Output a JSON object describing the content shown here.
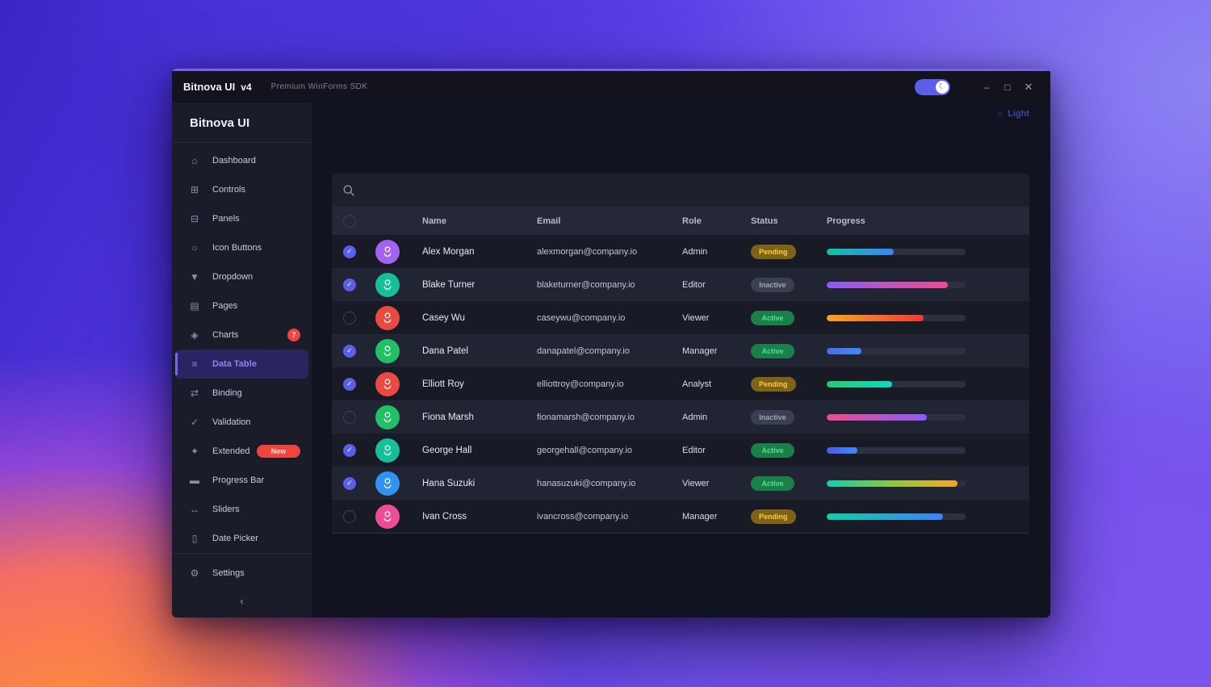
{
  "window": {
    "title": "Bitnova UI",
    "version": "v4",
    "subtitle": "Premium WinForms SDK",
    "controls": {
      "minimize": "–",
      "maximize": "□",
      "close": "✕"
    },
    "theme_toggle_on": true
  },
  "icon_glyphs": {
    "home": "⌂",
    "grid": "⊞",
    "panel": "⊟",
    "circle": "○",
    "triangle-down": "▼",
    "page": "▤",
    "diamond": "◈",
    "list": "≡",
    "arrows": "⇄",
    "check": "✓",
    "sparkle": "✦",
    "bar": "▬",
    "slider": "↔",
    "calendar": "▯",
    "gear": "⚙",
    "sun": "☼",
    "moon": "☾",
    "checkmark": "✓"
  },
  "sidebar": {
    "brand": "Bitnova UI",
    "items": [
      {
        "label": "Dashboard",
        "icon": "home"
      },
      {
        "label": "Controls",
        "icon": "grid"
      },
      {
        "label": "Panels",
        "icon": "panel"
      },
      {
        "label": "Icon Buttons",
        "icon": "circle"
      },
      {
        "label": "Dropdown",
        "icon": "triangle-down"
      },
      {
        "label": "Pages",
        "icon": "page"
      },
      {
        "label": "Charts",
        "icon": "diamond",
        "badge": "7"
      },
      {
        "label": "Data Table",
        "icon": "list",
        "active": true
      },
      {
        "label": "Binding",
        "icon": "arrows"
      },
      {
        "label": "Validation",
        "icon": "check"
      },
      {
        "label": "Extended",
        "icon": "sparkle",
        "badge": "New"
      },
      {
        "label": "Progress Bar",
        "icon": "bar"
      },
      {
        "label": "Sliders",
        "icon": "slider"
      },
      {
        "label": "Date Picker",
        "icon": "calendar"
      }
    ],
    "footer_item": {
      "label": "Settings",
      "icon": "gear"
    },
    "collapse": "‹"
  },
  "main": {
    "theme_button": "Light",
    "table": {
      "columns": [
        "Name",
        "Email",
        "Role",
        "Status",
        "Progress"
      ],
      "rows": [
        {
          "name": "Alex Morgan",
          "email": "alexmorgan@company.io",
          "role": "Admin",
          "status": "Pending",
          "progress": 48,
          "checked": true,
          "avatar_color": "#a163f1",
          "bar": [
            "#12c2a0",
            "#3b82f6"
          ]
        },
        {
          "name": "Blake Turner",
          "email": "blaketurner@company.io",
          "role": "Editor",
          "status": "Inactive",
          "progress": 87,
          "checked": true,
          "avatar_color": "#16bf9a",
          "bar": [
            "#8b5cf6",
            "#ee4b90"
          ]
        },
        {
          "name": "Casey Wu",
          "email": "caseywu@company.io",
          "role": "Viewer",
          "status": "Active",
          "progress": 70,
          "checked": false,
          "avatar_color": "#ea4b41",
          "bar": [
            "#f5a623",
            "#ef3b36"
          ]
        },
        {
          "name": "Dana Patel",
          "email": "danapatel@company.io",
          "role": "Manager",
          "status": "Active",
          "progress": 25,
          "checked": true,
          "avatar_color": "#22c064",
          "bar": [
            "#4f6af0",
            "#3d8bf5"
          ]
        },
        {
          "name": "Elliott Roy",
          "email": "elliottroy@company.io",
          "role": "Analyst",
          "status": "Pending",
          "progress": 47,
          "checked": true,
          "avatar_color": "#ea4b41",
          "bar": [
            "#27cc6f",
            "#0fd6c2"
          ]
        },
        {
          "name": "Fiona Marsh",
          "email": "fionamarsh@company.io",
          "role": "Admin",
          "status": "Inactive",
          "progress": 72,
          "checked": false,
          "avatar_color": "#22c064",
          "bar": [
            "#ee4b90",
            "#8b5cf6"
          ]
        },
        {
          "name": "George Hall",
          "email": "georgehall@company.io",
          "role": "Editor",
          "status": "Active",
          "progress": 22,
          "checked": true,
          "avatar_color": "#16bf9a",
          "bar": [
            "#5058e8",
            "#3d8bf5"
          ]
        },
        {
          "name": "Hana Suzuki",
          "email": "hanasuzuki@company.io",
          "role": "Viewer",
          "status": "Active",
          "progress": 94,
          "checked": true,
          "avatar_color": "#3193ef",
          "bar": [
            "#12cfa6",
            "#8bc93f",
            "#f5a623"
          ]
        },
        {
          "name": "Ivan Cross",
          "email": "ivancross@company.io",
          "role": "Manager",
          "status": "Pending",
          "progress": 84,
          "checked": false,
          "avatar_color": "#ec4d96",
          "bar": [
            "#12cfa6",
            "#3b82f6"
          ]
        }
      ]
    }
  },
  "colors": {
    "accent": "#6f6af0",
    "titlebar_stripe": "#7a63e2",
    "badge_red": "#f0443f",
    "checkbox_checked": "#5a5ee8",
    "progress_track": "#2c3040",
    "status": {
      "pending": {
        "bg": "#7d6218",
        "text": "#ffcb3d"
      },
      "active": {
        "bg": "#1b7f49",
        "text": "#52e18e"
      },
      "inactive": {
        "bg": "#3b3f52",
        "text": "#9fa5b8"
      }
    }
  }
}
